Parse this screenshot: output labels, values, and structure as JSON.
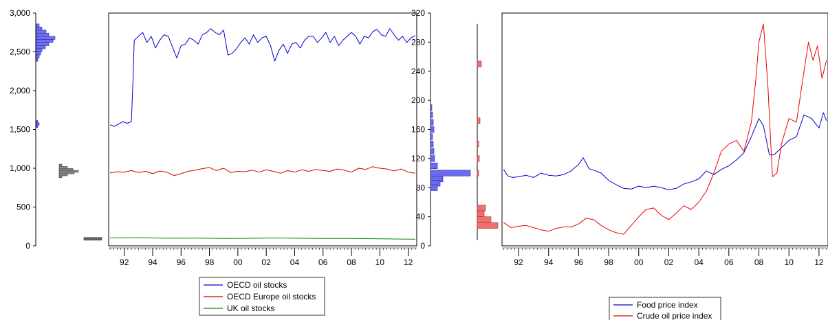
{
  "chart_data": [
    {
      "type": "line",
      "title": "",
      "xlabel": "",
      "ylabel": "",
      "ylim": [
        0,
        3000
      ],
      "yticks": [
        0,
        500,
        1000,
        1500,
        2000,
        2500,
        3000
      ],
      "ytick_labels": [
        "0",
        "500",
        "1,000",
        "1,500",
        "2,000",
        "2,500",
        "3,000"
      ],
      "xlim": [
        1990.9,
        2012.6
      ],
      "xticks": [
        1992,
        1994,
        1996,
        1998,
        2000,
        2002,
        2004,
        2006,
        2008,
        2010,
        2012
      ],
      "xtick_labels": [
        "92",
        "94",
        "96",
        "98",
        "00",
        "02",
        "04",
        "06",
        "08",
        "10",
        "12"
      ],
      "grid": false,
      "legend": "bottom",
      "marginal_histograms": "left",
      "series": [
        {
          "name": "OECD oil stocks",
          "color": "#0000cc",
          "x": [
            1991.0,
            1991.3,
            1991.6,
            1991.9,
            1992.2,
            1992.5,
            1992.6,
            1992.7,
            1993.0,
            1993.3,
            1993.6,
            1993.9,
            1994.2,
            1994.5,
            1994.8,
            1995.1,
            1995.4,
            1995.7,
            1996.0,
            1996.3,
            1996.6,
            1996.9,
            1997.2,
            1997.5,
            1997.8,
            1998.1,
            1998.4,
            1998.7,
            1999.0,
            1999.3,
            1999.6,
            1999.9,
            2000.2,
            2000.5,
            2000.8,
            2001.1,
            2001.4,
            2001.7,
            2002.0,
            2002.3,
            2002.6,
            2002.9,
            2003.2,
            2003.5,
            2003.8,
            2004.1,
            2004.4,
            2004.7,
            2005.0,
            2005.3,
            2005.6,
            2005.9,
            2006.2,
            2006.5,
            2006.8,
            2007.1,
            2007.4,
            2007.7,
            2008.0,
            2008.3,
            2008.6,
            2008.9,
            2009.2,
            2009.5,
            2009.8,
            2010.1,
            2010.4,
            2010.7,
            2011.0,
            2011.3,
            2011.6,
            2011.9,
            2012.2,
            2012.5
          ],
          "values": [
            1560,
            1540,
            1570,
            1600,
            1580,
            1600,
            2050,
            2650,
            2700,
            2750,
            2620,
            2700,
            2550,
            2650,
            2720,
            2700,
            2560,
            2420,
            2580,
            2600,
            2680,
            2650,
            2600,
            2720,
            2750,
            2800,
            2750,
            2720,
            2780,
            2460,
            2480,
            2540,
            2620,
            2680,
            2600,
            2720,
            2620,
            2680,
            2700,
            2580,
            2380,
            2520,
            2600,
            2480,
            2600,
            2620,
            2550,
            2650,
            2700,
            2700,
            2620,
            2680,
            2750,
            2620,
            2700,
            2580,
            2650,
            2700,
            2750,
            2700,
            2600,
            2700,
            2680,
            2760,
            2790,
            2720,
            2700,
            2800,
            2720,
            2650,
            2700,
            2620,
            2680,
            2710
          ]
        },
        {
          "name": "OECD Europe oil stocks",
          "color": "#cc0000",
          "x": [
            1991.0,
            1991.5,
            1992.0,
            1992.5,
            1993.0,
            1993.5,
            1994.0,
            1994.5,
            1995.0,
            1995.5,
            1996.0,
            1996.5,
            1997.0,
            1997.5,
            1998.0,
            1998.5,
            1999.0,
            1999.5,
            2000.0,
            2000.5,
            2001.0,
            2001.5,
            2002.0,
            2002.5,
            2003.0,
            2003.5,
            2004.0,
            2004.5,
            2005.0,
            2005.5,
            2006.0,
            2006.5,
            2007.0,
            2007.5,
            2008.0,
            2008.5,
            2009.0,
            2009.5,
            2010.0,
            2010.5,
            2011.0,
            2011.5,
            2012.0,
            2012.5
          ],
          "values": [
            940,
            955,
            950,
            970,
            945,
            960,
            930,
            965,
            950,
            905,
            930,
            960,
            975,
            995,
            1010,
            970,
            1000,
            945,
            960,
            955,
            975,
            950,
            980,
            960,
            935,
            970,
            950,
            980,
            960,
            985,
            970,
            960,
            990,
            975,
            950,
            1000,
            985,
            1020,
            1000,
            990,
            965,
            990,
            950,
            935
          ]
        },
        {
          "name": "UK oil stocks",
          "color": "#008800",
          "x": [
            1991.0,
            1993.0,
            1995.0,
            1997.0,
            1999.0,
            2001.0,
            2002.5,
            2004.0,
            2006.0,
            2008.0,
            2010.0,
            2012.5
          ],
          "values": [
            102,
            105,
            98,
            100,
            95,
            97,
            102,
            98,
            96,
            95,
            90,
            85
          ]
        }
      ]
    },
    {
      "type": "line",
      "title": "",
      "xlabel": "",
      "ylabel": "",
      "ylim": [
        0,
        320
      ],
      "yticks": [
        0,
        40,
        80,
        120,
        160,
        200,
        240,
        280,
        320
      ],
      "ytick_labels": [
        "0",
        "40",
        "80",
        "120",
        "160",
        "200",
        "240",
        "280",
        "320"
      ],
      "xlim": [
        1990.9,
        2012.6
      ],
      "xticks": [
        1992,
        1994,
        1996,
        1998,
        2000,
        2002,
        2004,
        2006,
        2008,
        2010,
        2012
      ],
      "xtick_labels": [
        "92",
        "94",
        "96",
        "98",
        "00",
        "02",
        "04",
        "06",
        "08",
        "10",
        "12"
      ],
      "grid": false,
      "legend": "bottom",
      "marginal_histograms": "left",
      "series": [
        {
          "name": "Food price index",
          "color": "#0000cc",
          "x": [
            1991.0,
            1991.3,
            1991.6,
            1992.0,
            1992.5,
            1993.0,
            1993.5,
            1994.0,
            1994.5,
            1995.0,
            1995.5,
            1996.0,
            1996.3,
            1996.7,
            1997.0,
            1997.5,
            1998.0,
            1998.5,
            1999.0,
            1999.5,
            2000.0,
            2000.5,
            2001.0,
            2001.5,
            2002.0,
            2002.5,
            2003.0,
            2003.5,
            2004.0,
            2004.5,
            2005.0,
            2005.5,
            2006.0,
            2006.5,
            2007.0,
            2007.5,
            2008.0,
            2008.3,
            2008.7,
            2009.0,
            2009.5,
            2010.0,
            2010.5,
            2011.0,
            2011.5,
            2012.0,
            2012.3,
            2012.5
          ],
          "values": [
            105,
            96,
            94,
            95,
            97,
            94,
            100,
            97,
            96,
            98,
            103,
            112,
            121,
            106,
            104,
            100,
            90,
            84,
            79,
            78,
            82,
            80,
            82,
            80,
            77,
            79,
            85,
            88,
            92,
            103,
            98,
            105,
            110,
            118,
            128,
            150,
            175,
            165,
            125,
            125,
            135,
            145,
            150,
            180,
            175,
            162,
            183,
            172
          ]
        },
        {
          "name": "Crude oil price index",
          "color": "#ee0000",
          "x": [
            1991.0,
            1991.5,
            1992.0,
            1992.5,
            1993.0,
            1993.5,
            1994.0,
            1994.5,
            1995.0,
            1995.5,
            1996.0,
            1996.5,
            1997.0,
            1997.5,
            1998.0,
            1998.5,
            1999.0,
            1999.5,
            2000.0,
            2000.5,
            2001.0,
            2001.5,
            2002.0,
            2002.5,
            2003.0,
            2003.5,
            2004.0,
            2004.5,
            2005.0,
            2005.5,
            2006.0,
            2006.5,
            2007.0,
            2007.5,
            2007.8,
            2008.0,
            2008.3,
            2008.6,
            2008.9,
            2009.2,
            2009.5,
            2010.0,
            2010.5,
            2011.0,
            2011.3,
            2011.6,
            2011.9,
            2012.2,
            2012.5
          ],
          "values": [
            32,
            25,
            27,
            28,
            25,
            22,
            20,
            24,
            26,
            26,
            30,
            38,
            36,
            28,
            22,
            18,
            16,
            28,
            40,
            50,
            52,
            42,
            36,
            45,
            55,
            50,
            60,
            75,
            100,
            130,
            140,
            145,
            130,
            170,
            230,
            280,
            305,
            220,
            95,
            100,
            140,
            175,
            170,
            240,
            280,
            255,
            275,
            230,
            255
          ]
        }
      ]
    }
  ],
  "legends": [
    {
      "entries": [
        {
          "name": "OECD oil stocks",
          "color": "#0000cc"
        },
        {
          "name": "OECD Europe oil stocks",
          "color": "#cc0000"
        },
        {
          "name": "UK oil stocks",
          "color": "#008800"
        }
      ]
    },
    {
      "entries": [
        {
          "name": "Food price index",
          "color": "#0000cc"
        },
        {
          "name": "Crude oil price index",
          "color": "#ee0000"
        }
      ]
    }
  ]
}
